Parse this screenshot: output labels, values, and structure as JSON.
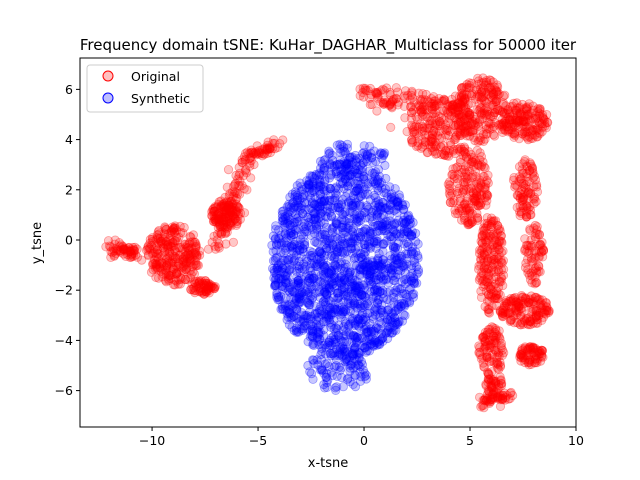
{
  "chart_data": {
    "type": "scatter",
    "title": "Frequency domain tSNE: KuHar_DAGHAR_Multiclass for 50000 iter",
    "xlabel": "x-tsne",
    "ylabel": "y_tsne",
    "xlim": [
      -13.4,
      10.0
    ],
    "ylim": [
      -7.45,
      7.25
    ],
    "xticks": [
      -10,
      -5,
      0,
      5,
      10
    ],
    "yticks": [
      -6,
      -4,
      -2,
      0,
      2,
      4,
      6
    ],
    "xtick_labels": [
      "−10",
      "−5",
      "0",
      "5",
      "10"
    ],
    "ytick_labels": [
      "−6",
      "−4",
      "−2",
      "0",
      "2",
      "4",
      "6"
    ],
    "grid": false,
    "legend_position": "upper-left",
    "marker_alpha": 0.22,
    "series": [
      {
        "name": "Original",
        "color": "#ff0000",
        "regions": [
          {
            "shape": "line",
            "from": [
              -12.2,
              -0.3
            ],
            "to": [
              -10.5,
              -0.6
            ],
            "spread": 0.15,
            "count": 60
          },
          {
            "shape": "ellipse",
            "center": [
              -9.0,
              -0.6
            ],
            "radius": [
              1.3,
              1.2
            ],
            "count": 260
          },
          {
            "shape": "ellipse",
            "center": [
              -7.6,
              -1.9
            ],
            "radius": [
              0.6,
              0.3
            ],
            "count": 60
          },
          {
            "shape": "ellipse",
            "center": [
              -6.5,
              1.0
            ],
            "radius": [
              0.7,
              0.6
            ],
            "count": 120
          },
          {
            "shape": "line",
            "from": [
              -6.8,
              -0.2
            ],
            "to": [
              -5.5,
              3.4
            ],
            "spread": 0.25,
            "count": 80
          },
          {
            "shape": "line",
            "from": [
              -5.6,
              3.3
            ],
            "to": [
              -4.0,
              3.8
            ],
            "spread": 0.12,
            "count": 50
          },
          {
            "shape": "line",
            "from": [
              0.0,
              5.9
            ],
            "to": [
              2.8,
              5.4
            ],
            "spread": 0.3,
            "count": 80
          },
          {
            "shape": "ellipse",
            "center": [
              3.6,
              4.5
            ],
            "radius": [
              1.6,
              1.2
            ],
            "count": 220
          },
          {
            "shape": "ellipse",
            "center": [
              5.5,
              5.2
            ],
            "radius": [
              1.3,
              1.3
            ],
            "count": 200
          },
          {
            "shape": "ellipse",
            "center": [
              7.5,
              4.7
            ],
            "radius": [
              1.2,
              0.8
            ],
            "count": 160
          },
          {
            "shape": "ellipse",
            "center": [
              4.9,
              2.2
            ],
            "radius": [
              1.0,
              1.6
            ],
            "count": 180
          },
          {
            "shape": "ellipse",
            "center": [
              7.6,
              2.0
            ],
            "radius": [
              0.6,
              1.2
            ],
            "count": 90
          },
          {
            "shape": "ellipse",
            "center": [
              6.0,
              -1.0
            ],
            "radius": [
              0.6,
              2.0
            ],
            "count": 180
          },
          {
            "shape": "ellipse",
            "center": [
              8.0,
              -0.6
            ],
            "radius": [
              0.5,
              1.2
            ],
            "count": 70
          },
          {
            "shape": "ellipse",
            "center": [
              7.6,
              -2.8
            ],
            "radius": [
              1.2,
              0.6
            ],
            "count": 150
          },
          {
            "shape": "ellipse",
            "center": [
              7.9,
              -4.6
            ],
            "radius": [
              0.6,
              0.4
            ],
            "count": 70
          },
          {
            "shape": "ellipse",
            "center": [
              6.0,
              -4.4
            ],
            "radius": [
              0.6,
              1.0
            ],
            "count": 90
          },
          {
            "shape": "line",
            "from": [
              5.4,
              -6.5
            ],
            "to": [
              6.9,
              -6.2
            ],
            "spread": 0.15,
            "count": 50
          },
          {
            "shape": "ellipse",
            "center": [
              6.1,
              -5.7
            ],
            "radius": [
              0.4,
              0.5
            ],
            "count": 40
          }
        ]
      },
      {
        "name": "Synthetic",
        "color": "#0000ff",
        "regions": [
          {
            "shape": "ellipse",
            "center": [
              -0.9,
              -0.8
            ],
            "radius": [
              3.5,
              3.9
            ],
            "count": 1600
          },
          {
            "shape": "ellipse",
            "center": [
              -0.5,
              3.2
            ],
            "radius": [
              1.6,
              0.7
            ],
            "count": 90
          },
          {
            "shape": "ellipse",
            "center": [
              -1.2,
              -5.2
            ],
            "radius": [
              1.5,
              0.8
            ],
            "count": 90
          }
        ]
      }
    ]
  }
}
